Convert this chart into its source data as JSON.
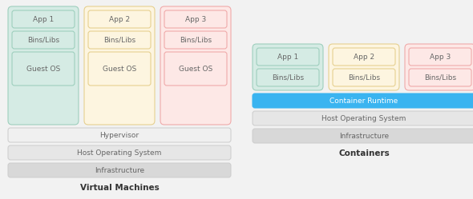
{
  "bg_color": "#f2f2f2",
  "title_vm": "Virtual Machines",
  "title_ct": "Containers",
  "col_colors": [
    "#d5ebe4",
    "#fdf5e0",
    "#fde8e6"
  ],
  "col_border_colors": [
    "#9ecfbd",
    "#e6d090",
    "#f0aaaa"
  ],
  "app_labels": [
    "App 1",
    "App 2",
    "App 3"
  ],
  "bins_label": "Bins/Libs",
  "guestos_label": "Guest OS",
  "hypervisor_label": "Hypervisor",
  "hostos_label": "Host Operating System",
  "infra_label": "Infrastructure",
  "container_runtime_label": "Container Runtime",
  "container_runtime_color": "#3ab4f0",
  "font_size_box": 6.5,
  "font_size_title": 7.5,
  "text_color": "#666666",
  "layer_colors": [
    "#f0f0f0",
    "#e6e6e6",
    "#d8d8d8"
  ],
  "layer_border": "#cccccc"
}
